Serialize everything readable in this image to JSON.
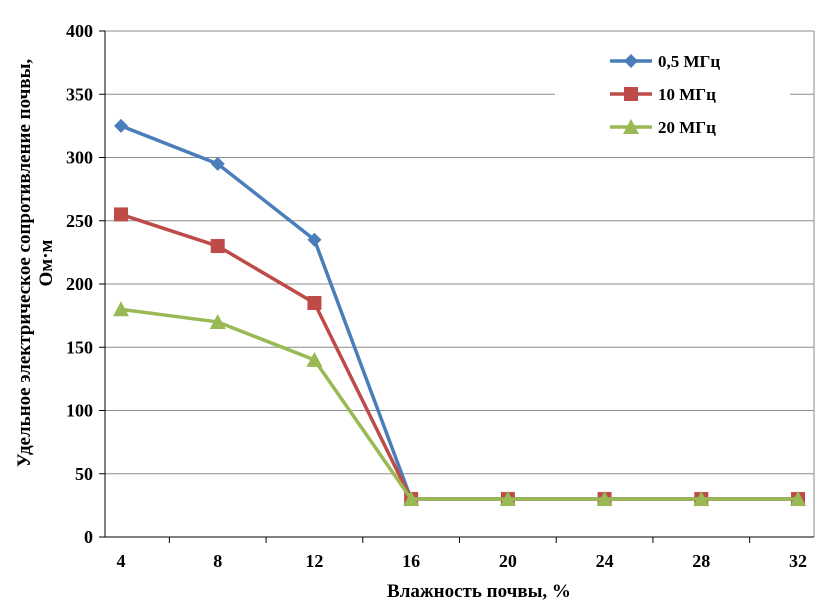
{
  "chart_data": {
    "type": "line",
    "title": "",
    "xlabel": "Влажность почвы, %",
    "ylabel_line1": "Удельное электрическое сопротивление почвы,",
    "ylabel_line2": "Ом·м",
    "x": [
      4,
      8,
      12,
      16,
      20,
      24,
      28,
      32
    ],
    "x_tick_labels": [
      "4",
      "8",
      "12",
      "16",
      "20",
      "24",
      "28",
      "32"
    ],
    "y_tick_labels": [
      "0",
      "50",
      "100",
      "150",
      "200",
      "250",
      "300",
      "350",
      "400"
    ],
    "ylim": [
      0,
      400
    ],
    "grid": "horizontal",
    "legend_position": "top-right",
    "series": [
      {
        "name": "0,5 МГц",
        "color": "#4A7EBB",
        "marker": "diamond",
        "values": [
          325,
          295,
          235,
          30,
          30,
          30,
          30,
          30
        ]
      },
      {
        "name": "10 МГц",
        "color": "#BE4B48",
        "marker": "square",
        "values": [
          255,
          230,
          185,
          30,
          30,
          30,
          30,
          30
        ]
      },
      {
        "name": "20 МГц",
        "color": "#98B954",
        "marker": "triangle",
        "values": [
          180,
          170,
          140,
          30,
          30,
          30,
          30,
          30
        ]
      }
    ]
  }
}
